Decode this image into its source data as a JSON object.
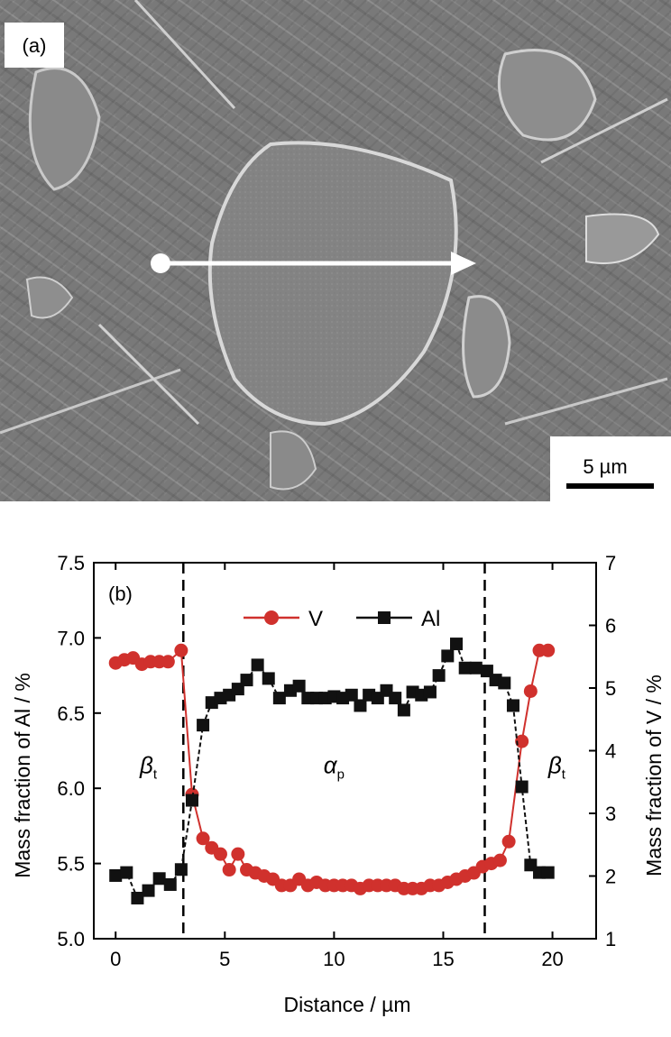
{
  "panel_a": {
    "label": "(a)",
    "scale_bar": "5 µm",
    "image_description_icon": "sem-micrograph-icon"
  },
  "chart_data": {
    "type": "scatter",
    "panel_label": "(b)",
    "xlabel": "Distance / µm",
    "ylabel_left": "Mass fraction of Al / %",
    "ylabel_right": "Mass fraction of V / %",
    "xlim": [
      -1,
      22
    ],
    "ylim_left": [
      5.0,
      7.5
    ],
    "ylim_right": [
      1,
      7
    ],
    "x_ticks": [
      "0",
      "5",
      "10",
      "15",
      "20"
    ],
    "y_ticks_left": [
      "5.0",
      "5.5",
      "6.0",
      "6.5",
      "7.0",
      "7.5"
    ],
    "y_ticks_right": [
      "1",
      "2",
      "3",
      "4",
      "5",
      "6",
      "7"
    ],
    "vlines": [
      3.1,
      16.9
    ],
    "regions": [
      {
        "symbol": "β",
        "sub": "t",
        "x": 1.5,
        "y": 6.1
      },
      {
        "symbol": "α",
        "sub": "p",
        "x": 10.0,
        "y": 6.1
      },
      {
        "symbol": "β",
        "sub": "t",
        "x": 20.2,
        "y": 6.1
      }
    ],
    "legend": {
      "position": "top-center",
      "entries": [
        "V",
        "Al"
      ]
    },
    "series": [
      {
        "name": "V",
        "axis": "right",
        "color": "#d0312d",
        "marker": "circle",
        "x": [
          0,
          0.4,
          0.8,
          1.2,
          1.6,
          2,
          2.4,
          3,
          3.5,
          4,
          4.4,
          4.8,
          5.2,
          5.6,
          6,
          6.4,
          6.8,
          7.2,
          7.6,
          8,
          8.4,
          8.8,
          9.2,
          9.6,
          10,
          10.4,
          10.8,
          11.2,
          11.6,
          12,
          12.4,
          12.8,
          13.2,
          13.6,
          14,
          14.4,
          14.8,
          15.2,
          15.6,
          16,
          16.4,
          16.8,
          17.2,
          17.6,
          18,
          18.6,
          19,
          19.4,
          19.8
        ],
        "y": [
          5.4,
          5.45,
          5.48,
          5.38,
          5.42,
          5.42,
          5.42,
          5.6,
          3.3,
          2.6,
          2.45,
          2.35,
          2.1,
          2.35,
          2.1,
          2.05,
          2,
          1.95,
          1.85,
          1.85,
          1.95,
          1.85,
          1.9,
          1.85,
          1.85,
          1.85,
          1.85,
          1.8,
          1.85,
          1.85,
          1.85,
          1.85,
          1.8,
          1.8,
          1.8,
          1.85,
          1.85,
          1.9,
          1.95,
          2.0,
          2.05,
          2.15,
          2.2,
          2.25,
          2.55,
          4.15,
          4.95,
          5.6,
          5.6
        ]
      },
      {
        "name": "Al",
        "axis": "left",
        "color": "#111111",
        "marker": "square",
        "x": [
          0,
          0.5,
          1,
          1.5,
          2,
          2.5,
          3,
          3.5,
          4,
          4.4,
          4.8,
          5.2,
          5.6,
          6,
          6.5,
          7,
          7.5,
          8,
          8.4,
          8.8,
          9.2,
          9.6,
          10,
          10.4,
          10.8,
          11.2,
          11.6,
          12,
          12.4,
          12.8,
          13.2,
          13.6,
          14,
          14.4,
          14.8,
          15.2,
          15.6,
          16,
          16.5,
          17,
          17.4,
          17.8,
          18.2,
          18.6,
          19,
          19.4,
          19.8
        ],
        "y": [
          5.42,
          5.44,
          5.27,
          5.32,
          5.4,
          5.36,
          5.46,
          5.92,
          6.42,
          6.57,
          6.6,
          6.62,
          6.66,
          6.72,
          6.82,
          6.73,
          6.6,
          6.65,
          6.68,
          6.6,
          6.6,
          6.6,
          6.61,
          6.6,
          6.62,
          6.55,
          6.62,
          6.6,
          6.65,
          6.6,
          6.52,
          6.64,
          6.62,
          6.64,
          6.75,
          6.88,
          6.96,
          6.8,
          6.8,
          6.78,
          6.72,
          6.7,
          6.55,
          6.01,
          5.49,
          5.44,
          5.44
        ]
      }
    ]
  }
}
